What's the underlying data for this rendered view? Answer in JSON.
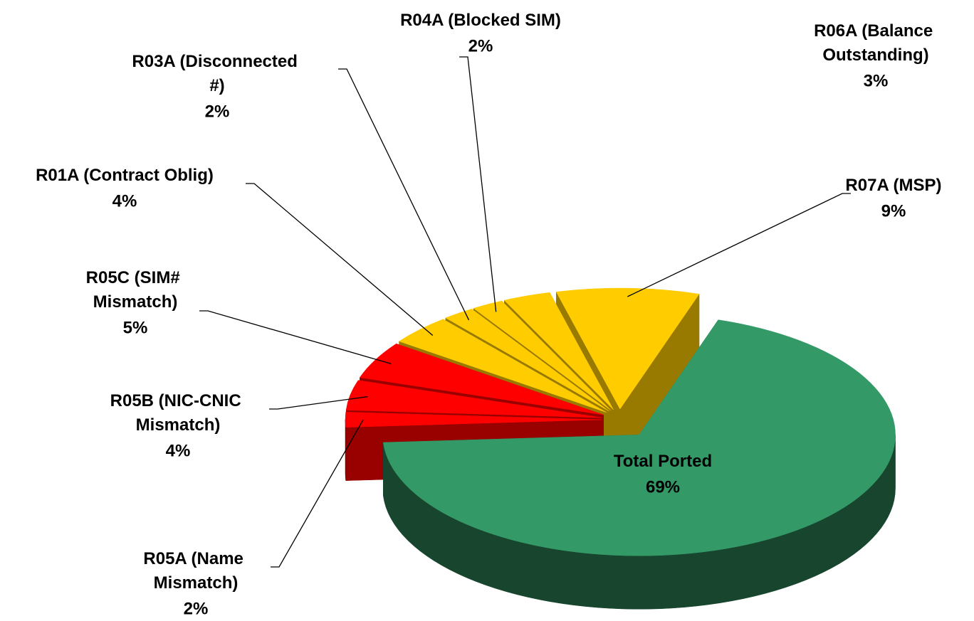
{
  "chart_data": {
    "type": "pie3d",
    "categories": [
      "Total Ported",
      "R05A (Name Mismatch)",
      "R05B (NIC-CNIC Mismatch)",
      "R05C (SIM# Mismatch)",
      "R01A (Contract Oblig)",
      "R03A (Disconnected #)",
      "R04A (Blocked SIM)",
      "R06A (Balance Outstanding)",
      "R07A (MSP)"
    ],
    "values": [
      69,
      2,
      4,
      5,
      4,
      2,
      2,
      3,
      9
    ],
    "value_labels": [
      "69%",
      "2%",
      "4%",
      "5%",
      "4%",
      "2%",
      "2%",
      "3%",
      "9%"
    ],
    "colors": [
      "#339966",
      "#ff0000",
      "#ff0000",
      "#ff0000",
      "#ffcc00",
      "#ffcc00",
      "#ffcc00",
      "#ffcc00",
      "#ffcc00"
    ]
  }
}
